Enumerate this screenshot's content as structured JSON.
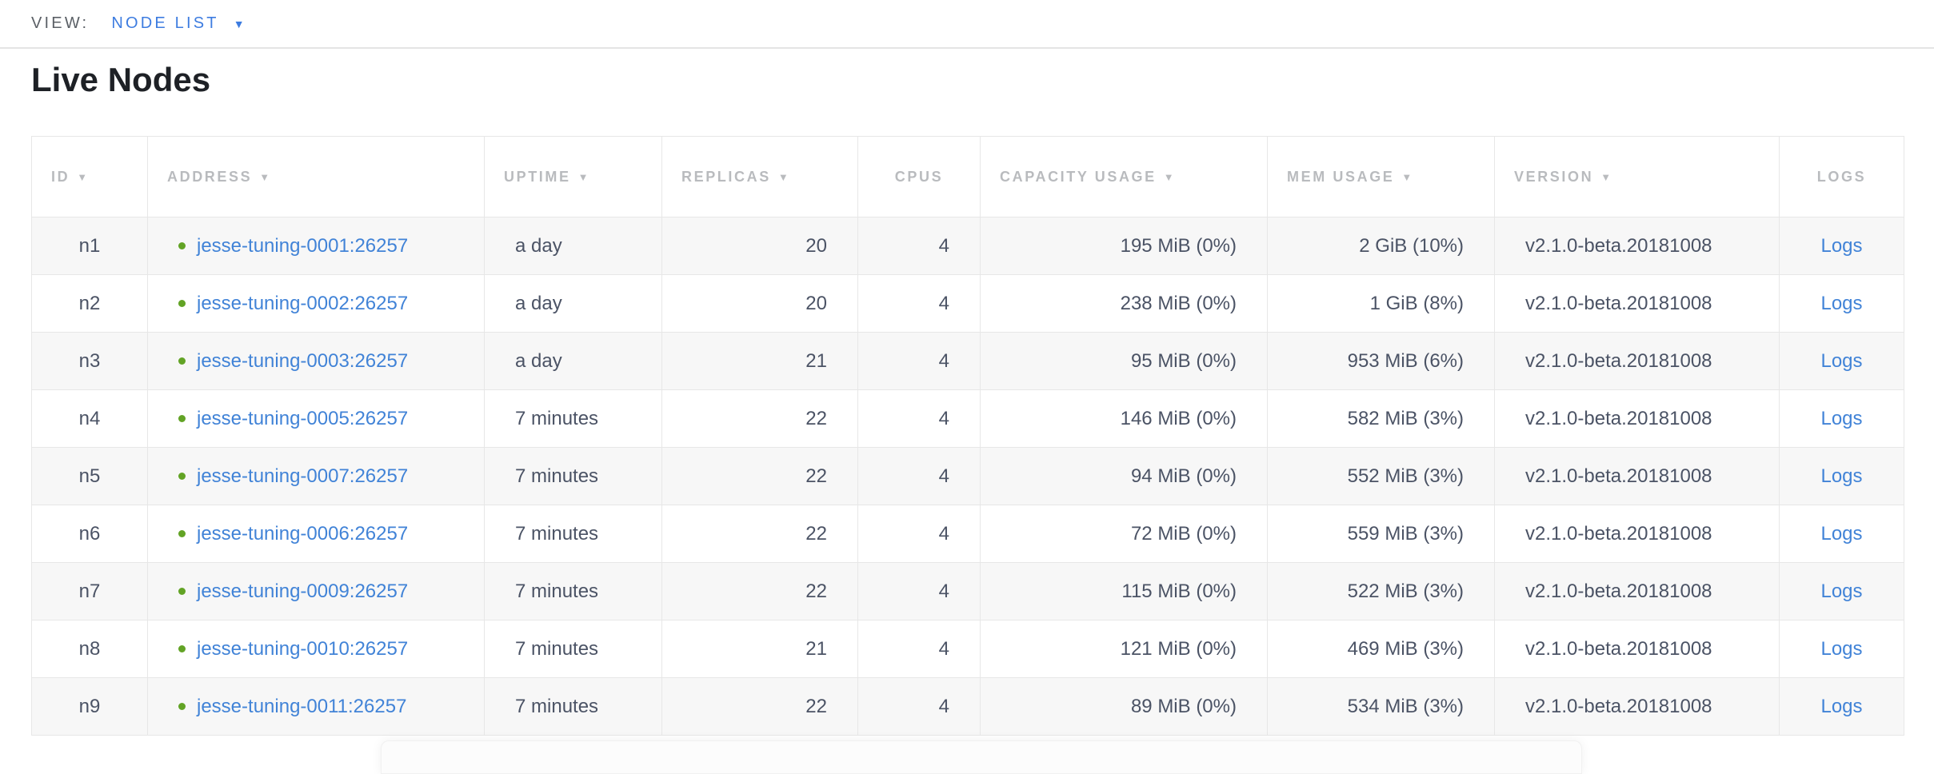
{
  "view_bar": {
    "label": "VIEW:",
    "selected": "NODE LIST",
    "caret_icon": "chevron-down"
  },
  "page": {
    "title": "Live Nodes"
  },
  "colors": {
    "view_accent": "#3d7ce0",
    "link_blue": "#4183d7",
    "live_dot_green": "#62a325",
    "header_gray": "#b9bbbe",
    "row_text": "#4b5365",
    "zebra_row": "#f7f7f7"
  },
  "table": {
    "columns": [
      {
        "key": "id",
        "label": "ID",
        "sortable": true
      },
      {
        "key": "address",
        "label": "ADDRESS",
        "sortable": true
      },
      {
        "key": "uptime",
        "label": "UPTIME",
        "sortable": true
      },
      {
        "key": "replicas",
        "label": "REPLICAS",
        "sortable": true
      },
      {
        "key": "cpus",
        "label": "CPUS",
        "sortable": false
      },
      {
        "key": "capacity",
        "label": "CAPACITY USAGE",
        "sortable": true
      },
      {
        "key": "mem",
        "label": "MEM USAGE",
        "sortable": true
      },
      {
        "key": "version",
        "label": "VERSION",
        "sortable": true
      },
      {
        "key": "logs",
        "label": "LOGS",
        "sortable": false
      }
    ],
    "rows": [
      {
        "id": "n1",
        "status": "live",
        "address": "jesse-tuning-0001:26257",
        "uptime": "a day",
        "replicas": "20",
        "cpus": "4",
        "capacity": "195 MiB (0%)",
        "mem": "2 GiB (10%)",
        "version": "v2.1.0-beta.20181008",
        "logs": "Logs"
      },
      {
        "id": "n2",
        "status": "live",
        "address": "jesse-tuning-0002:26257",
        "uptime": "a day",
        "replicas": "20",
        "cpus": "4",
        "capacity": "238 MiB (0%)",
        "mem": "1 GiB (8%)",
        "version": "v2.1.0-beta.20181008",
        "logs": "Logs"
      },
      {
        "id": "n3",
        "status": "live",
        "address": "jesse-tuning-0003:26257",
        "uptime": "a day",
        "replicas": "21",
        "cpus": "4",
        "capacity": "95 MiB (0%)",
        "mem": "953 MiB (6%)",
        "version": "v2.1.0-beta.20181008",
        "logs": "Logs"
      },
      {
        "id": "n4",
        "status": "live",
        "address": "jesse-tuning-0005:26257",
        "uptime": "7 minutes",
        "replicas": "22",
        "cpus": "4",
        "capacity": "146 MiB (0%)",
        "mem": "582 MiB (3%)",
        "version": "v2.1.0-beta.20181008",
        "logs": "Logs"
      },
      {
        "id": "n5",
        "status": "live",
        "address": "jesse-tuning-0007:26257",
        "uptime": "7 minutes",
        "replicas": "22",
        "cpus": "4",
        "capacity": "94 MiB (0%)",
        "mem": "552 MiB (3%)",
        "version": "v2.1.0-beta.20181008",
        "logs": "Logs"
      },
      {
        "id": "n6",
        "status": "live",
        "address": "jesse-tuning-0006:26257",
        "uptime": "7 minutes",
        "replicas": "22",
        "cpus": "4",
        "capacity": "72 MiB (0%)",
        "mem": "559 MiB (3%)",
        "version": "v2.1.0-beta.20181008",
        "logs": "Logs"
      },
      {
        "id": "n7",
        "status": "live",
        "address": "jesse-tuning-0009:26257",
        "uptime": "7 minutes",
        "replicas": "22",
        "cpus": "4",
        "capacity": "115 MiB (0%)",
        "mem": "522 MiB (3%)",
        "version": "v2.1.0-beta.20181008",
        "logs": "Logs"
      },
      {
        "id": "n8",
        "status": "live",
        "address": "jesse-tuning-0010:26257",
        "uptime": "7 minutes",
        "replicas": "21",
        "cpus": "4",
        "capacity": "121 MiB (0%)",
        "mem": "469 MiB (3%)",
        "version": "v2.1.0-beta.20181008",
        "logs": "Logs"
      },
      {
        "id": "n9",
        "status": "live",
        "address": "jesse-tuning-0011:26257",
        "uptime": "7 minutes",
        "replicas": "22",
        "cpus": "4",
        "capacity": "89 MiB (0%)",
        "mem": "534 MiB (3%)",
        "version": "v2.1.0-beta.20181008",
        "logs": "Logs"
      }
    ]
  }
}
